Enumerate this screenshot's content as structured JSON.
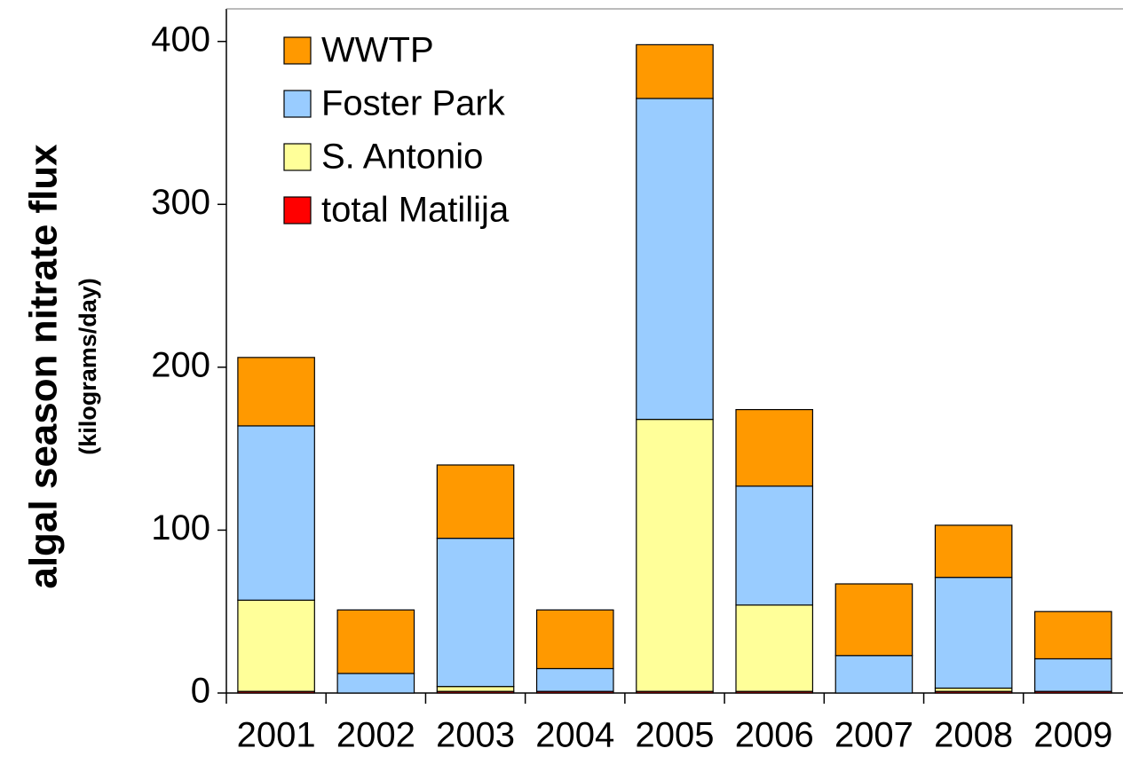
{
  "chart_data": {
    "type": "stacked_bar",
    "ylabel": "algal season nitrate flux",
    "ylabel_unit": "(kilograms/day)",
    "categories": [
      "2001",
      "2002",
      "2003",
      "2004",
      "2005",
      "2006",
      "2007",
      "2008",
      "2009"
    ],
    "series": [
      {
        "name": "total Matilija",
        "color": "#ff0000",
        "values": [
          1,
          0,
          1,
          1,
          1,
          1,
          0,
          1,
          1
        ]
      },
      {
        "name": "S. Antonio",
        "color": "#ffff99",
        "values": [
          56,
          0,
          3,
          0,
          167,
          53,
          0,
          2,
          0
        ]
      },
      {
        "name": "Foster Park",
        "color": "#99ccff",
        "values": [
          107,
          12,
          91,
          14,
          197,
          73,
          23,
          68,
          20
        ]
      },
      {
        "name": "WWTP",
        "color": "#ff9900",
        "values": [
          42,
          39,
          45,
          36,
          33,
          47,
          44,
          32,
          29
        ]
      }
    ],
    "ylim": [
      0,
      420
    ],
    "yticks": [
      0,
      100,
      200,
      300,
      400
    ],
    "legend": "upper-left"
  }
}
